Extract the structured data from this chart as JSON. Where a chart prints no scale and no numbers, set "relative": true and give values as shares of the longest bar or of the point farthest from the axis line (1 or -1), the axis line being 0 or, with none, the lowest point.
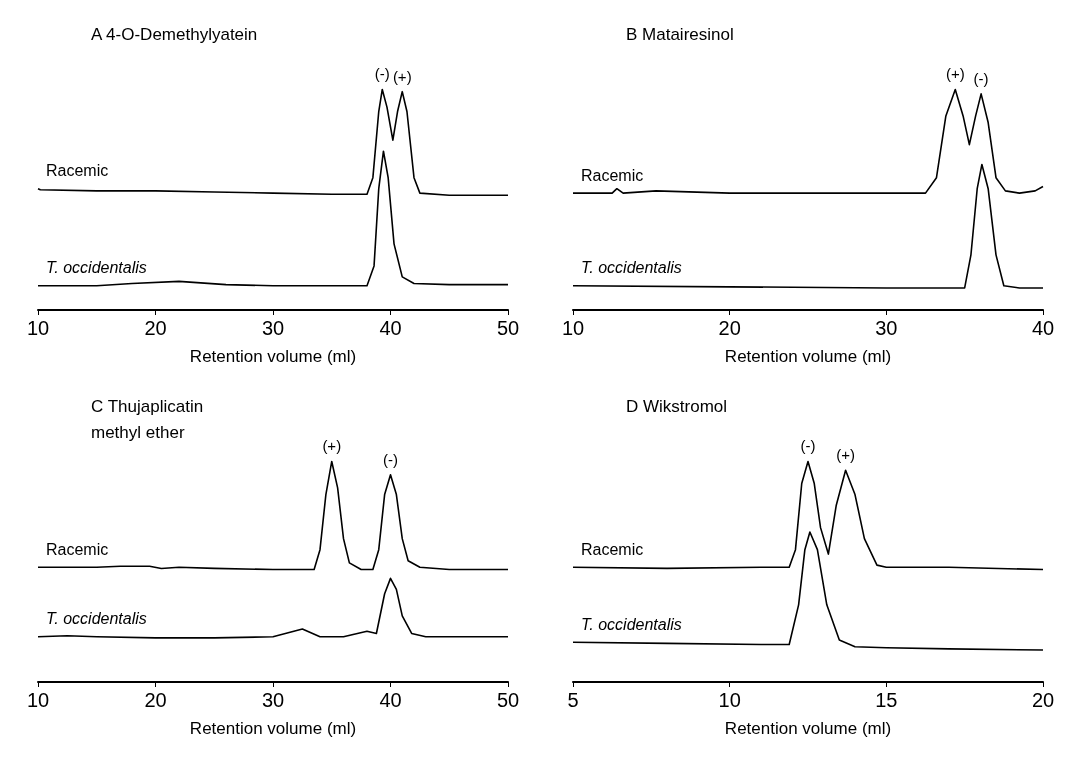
{
  "chart_data": [
    {
      "type": "line",
      "relative": true,
      "title": "A 4-O-Demethylyatein",
      "xlabel": "Retention volume (ml)",
      "xlim": [
        10,
        50
      ],
      "xticks": [
        10,
        20,
        30,
        40,
        50
      ],
      "series": [
        {
          "name": "Racemic",
          "color": "#000000",
          "x": [
            10,
            10.2,
            15,
            20,
            25,
            30,
            35,
            38,
            38.5,
            39,
            39.3,
            39.7,
            40.2,
            40.6,
            41,
            41.4,
            42,
            42.5,
            45,
            50
          ],
          "values": [
            0.55,
            0.545,
            0.54,
            0.54,
            0.535,
            0.53,
            0.525,
            0.525,
            0.6,
            0.9,
            1.0,
            0.92,
            0.77,
            0.9,
            0.99,
            0.9,
            0.6,
            0.53,
            0.52,
            0.52
          ]
        },
        {
          "name": "T. occidentalis",
          "color": "#000000",
          "x": [
            10,
            15,
            18,
            22,
            26,
            30,
            35,
            38,
            38.6,
            39,
            39.4,
            39.8,
            40.3,
            41,
            42,
            45,
            50
          ],
          "values": [
            0.11,
            0.11,
            0.12,
            0.13,
            0.115,
            0.11,
            0.11,
            0.11,
            0.2,
            0.55,
            0.72,
            0.6,
            0.3,
            0.15,
            0.12,
            0.115,
            0.115
          ]
        }
      ],
      "annotations": [
        {
          "text": "(-)",
          "x": 39.3,
          "y": 1.0
        },
        {
          "text": "(+)",
          "x": 41,
          "y": 0.99
        }
      ]
    },
    {
      "type": "line",
      "relative": true,
      "title": "B Matairesinol",
      "xlabel": "Retention volume (ml)",
      "xlim": [
        10,
        40
      ],
      "xticks": [
        10,
        20,
        30,
        40
      ],
      "series": [
        {
          "name": "Racemic",
          "color": "#000000",
          "x": [
            10,
            12.5,
            12.8,
            13.2,
            15.3,
            20,
            25,
            30,
            32.5,
            33.2,
            33.8,
            34.4,
            34.9,
            35.3,
            35.7,
            36.05,
            36.5,
            37,
            37.6,
            38.5,
            39.5,
            40
          ],
          "values": [
            0.53,
            0.53,
            0.55,
            0.53,
            0.54,
            0.53,
            0.53,
            0.53,
            0.53,
            0.6,
            0.88,
            1.0,
            0.88,
            0.75,
            0.88,
            0.98,
            0.85,
            0.6,
            0.54,
            0.53,
            0.54,
            0.56
          ]
        },
        {
          "name": "T. occidentalis",
          "color": "#000000",
          "x": [
            10,
            20,
            30,
            35,
            35.4,
            35.8,
            36.1,
            36.5,
            37,
            37.5,
            38.5,
            40
          ],
          "values": [
            0.11,
            0.105,
            0.1,
            0.1,
            0.25,
            0.55,
            0.66,
            0.55,
            0.25,
            0.11,
            0.1,
            0.1
          ]
        }
      ],
      "annotations": [
        {
          "text": "(+)",
          "x": 34.4,
          "y": 1.0
        },
        {
          "text": "(-)",
          "x": 36.05,
          "y": 0.98
        }
      ]
    },
    {
      "type": "line",
      "relative": true,
      "title": "C Thujaplicatin\nmethyl ether",
      "xlabel": "Retention volume (ml)",
      "xlim": [
        10,
        50
      ],
      "xticks": [
        10,
        20,
        30,
        40,
        50
      ],
      "series": [
        {
          "name": "Racemic",
          "color": "#000000",
          "x": [
            10,
            15,
            17,
            19.5,
            20.5,
            22,
            25,
            30,
            33.5,
            34,
            34.5,
            35,
            35.5,
            36,
            36.5,
            37.5,
            38.5,
            39,
            39.5,
            40,
            40.5,
            41,
            41.5,
            42.5,
            45,
            50
          ],
          "values": [
            0.52,
            0.52,
            0.525,
            0.525,
            0.515,
            0.52,
            0.515,
            0.51,
            0.51,
            0.6,
            0.85,
            1.0,
            0.88,
            0.65,
            0.54,
            0.51,
            0.51,
            0.6,
            0.85,
            0.94,
            0.85,
            0.65,
            0.55,
            0.52,
            0.51,
            0.51
          ]
        },
        {
          "name": "T. occidentalis",
          "color": "#000000",
          "x": [
            10,
            12.5,
            15,
            20,
            25,
            30,
            32.5,
            34,
            36,
            38,
            38.8,
            39.5,
            40,
            40.5,
            41,
            41.8,
            43,
            50
          ],
          "values": [
            0.205,
            0.21,
            0.205,
            0.2,
            0.2,
            0.205,
            0.24,
            0.205,
            0.205,
            0.23,
            0.22,
            0.4,
            0.47,
            0.42,
            0.3,
            0.22,
            0.205,
            0.205
          ]
        }
      ],
      "annotations": [
        {
          "text": "(+)",
          "x": 35,
          "y": 1.0
        },
        {
          "text": "(-)",
          "x": 40,
          "y": 0.94
        }
      ]
    },
    {
      "type": "line",
      "relative": true,
      "title": "D Wikstromol",
      "xlabel": "Retention volume (ml)",
      "xlim": [
        5,
        20
      ],
      "xticks": [
        5,
        10,
        15,
        20
      ],
      "series": [
        {
          "name": "Racemic",
          "color": "#000000",
          "x": [
            5,
            8,
            11,
            11.9,
            12.1,
            12.3,
            12.5,
            12.7,
            12.9,
            13.15,
            13.4,
            13.7,
            14,
            14.3,
            14.7,
            15,
            17,
            20
          ],
          "values": [
            0.52,
            0.515,
            0.52,
            0.52,
            0.6,
            0.9,
            1.0,
            0.9,
            0.7,
            0.58,
            0.8,
            0.96,
            0.85,
            0.65,
            0.53,
            0.52,
            0.52,
            0.51
          ]
        },
        {
          "name": "T. occidentalis",
          "color": "#000000",
          "x": [
            5,
            8,
            11,
            11.9,
            12.2,
            12.4,
            12.56,
            12.8,
            13.1,
            13.5,
            14,
            15,
            17,
            20
          ],
          "values": [
            0.18,
            0.175,
            0.17,
            0.17,
            0.35,
            0.6,
            0.68,
            0.6,
            0.35,
            0.19,
            0.16,
            0.155,
            0.15,
            0.145
          ]
        }
      ],
      "annotations": [
        {
          "text": "(-)",
          "x": 12.5,
          "y": 1.0
        },
        {
          "text": "(+)",
          "x": 13.7,
          "y": 0.96
        }
      ]
    }
  ]
}
